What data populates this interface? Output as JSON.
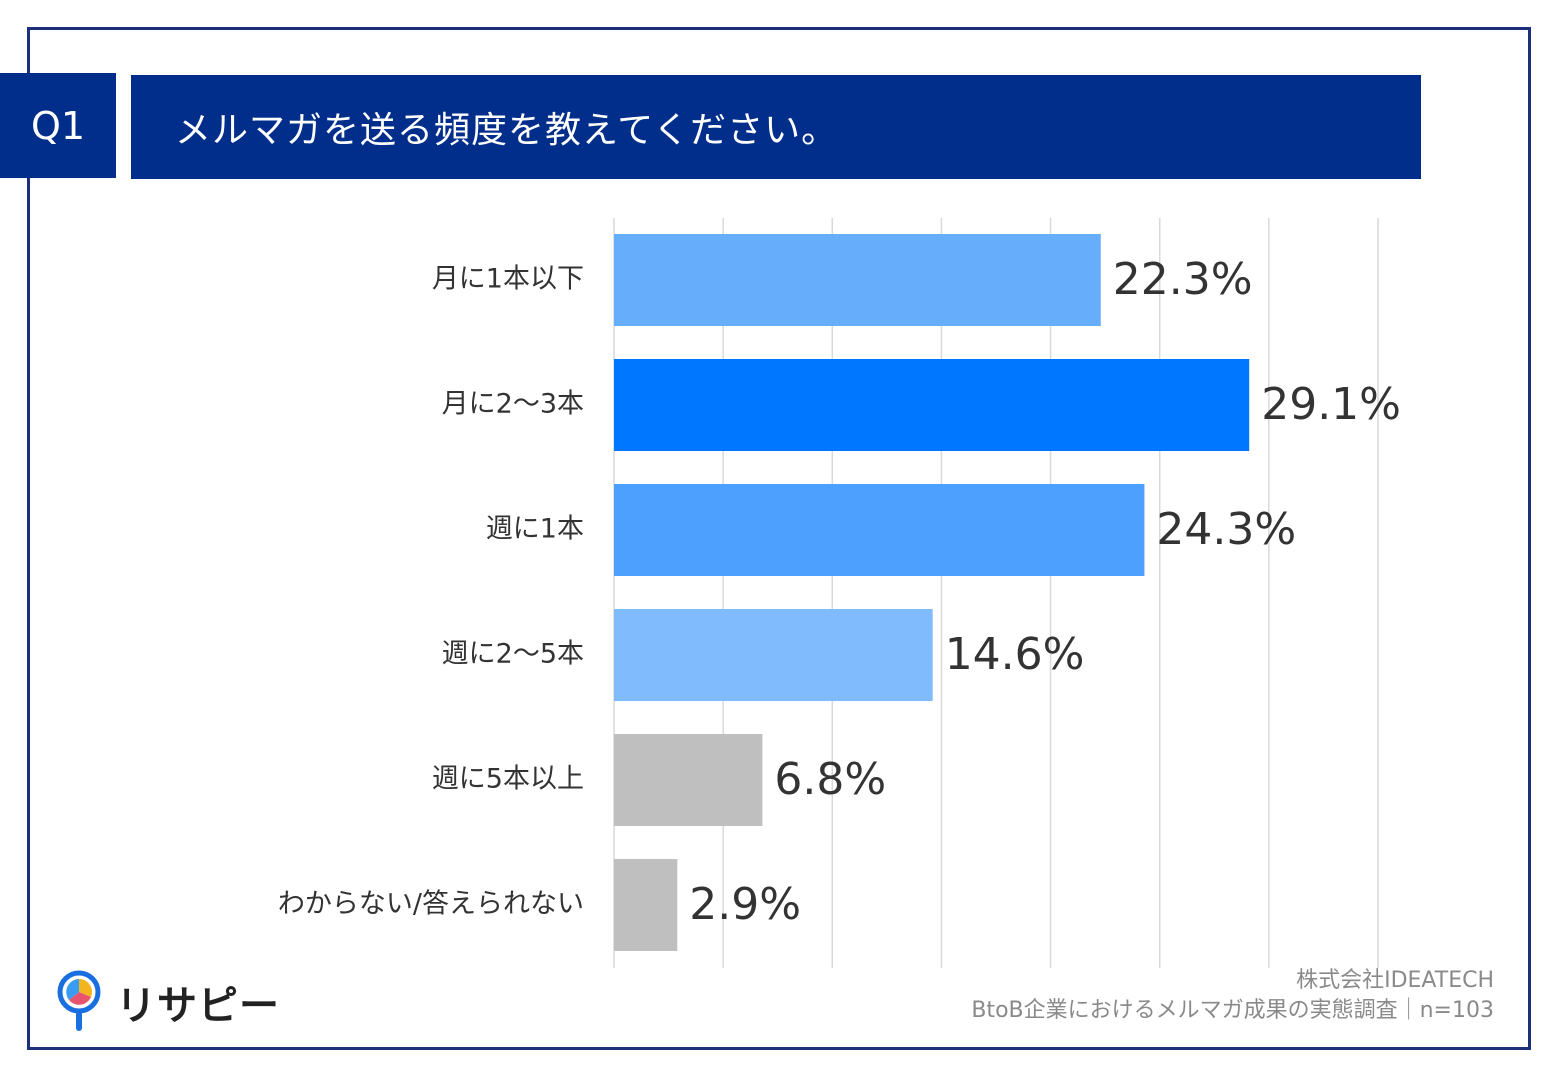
{
  "header": {
    "badge": "Q1",
    "question": "メルマガを送る頻度を教えてください。"
  },
  "chart_data": {
    "type": "bar",
    "orientation": "horizontal",
    "categories": [
      "月に1本以下",
      "月に2〜3本",
      "週に1本",
      "週に2〜5本",
      "週に5本以上",
      "わからない/答えられない"
    ],
    "values": [
      22.3,
      29.1,
      24.3,
      14.6,
      6.8,
      2.9
    ],
    "value_labels": [
      "22.3%",
      "29.1%",
      "24.3%",
      "14.6%",
      "6.8%",
      "2.9%"
    ],
    "colors": [
      "#66adfc",
      "#0077ff",
      "#4da0fd",
      "#80bcfd",
      "#bfbfbf",
      "#bfbfbf"
    ],
    "xlim": [
      0,
      35
    ],
    "grid": true,
    "title": "メルマガを送る頻度を教えてください。"
  },
  "footer": {
    "logo_text": "リサピー",
    "company": "株式会社IDEATECH",
    "survey": "BtoB企業におけるメルマガ成果の実態調査｜n=103"
  }
}
